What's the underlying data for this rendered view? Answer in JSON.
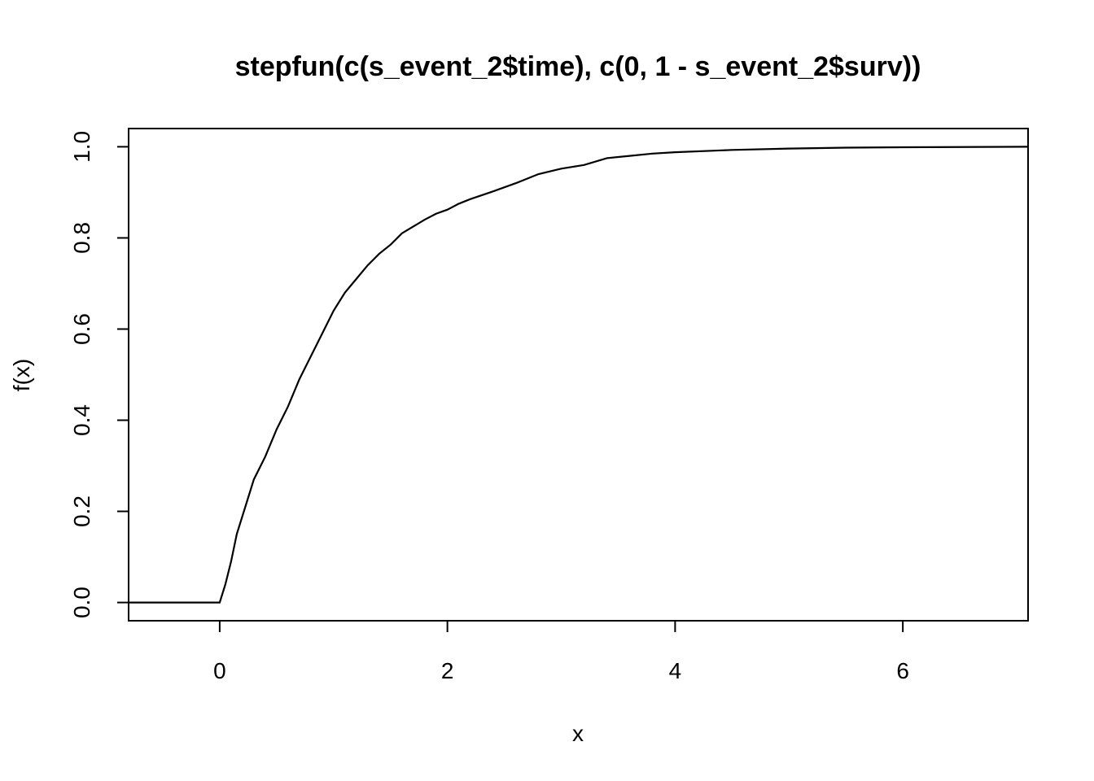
{
  "chart_data": {
    "type": "line",
    "title": "stepfun(c(s_event_2$time), c(0, 1 - s_event_2$surv))",
    "xlabel": "x",
    "ylabel": "f(x)",
    "xlim": [
      -0.8,
      7.1
    ],
    "ylim": [
      -0.04,
      1.04
    ],
    "x_ticks": [
      0,
      2,
      4,
      6
    ],
    "y_ticks": [
      0.0,
      0.2,
      0.4,
      0.6,
      0.8,
      1.0
    ],
    "x_tick_labels": [
      "0",
      "2",
      "4",
      "6"
    ],
    "y_tick_labels": [
      "0.0",
      "0.2",
      "0.4",
      "0.6",
      "0.8",
      "1.0"
    ],
    "grid": false,
    "legend": "none",
    "line_color": "#000000",
    "series": [
      {
        "values": [
          [
            -0.8,
            0.0
          ],
          [
            0.0,
            0.0
          ],
          [
            0.05,
            0.04
          ],
          [
            0.1,
            0.09
          ],
          [
            0.15,
            0.15
          ],
          [
            0.2,
            0.19
          ],
          [
            0.25,
            0.23
          ],
          [
            0.3,
            0.27
          ],
          [
            0.4,
            0.32
          ],
          [
            0.5,
            0.38
          ],
          [
            0.6,
            0.43
          ],
          [
            0.7,
            0.49
          ],
          [
            0.8,
            0.54
          ],
          [
            0.9,
            0.59
          ],
          [
            1.0,
            0.64
          ],
          [
            1.1,
            0.68
          ],
          [
            1.2,
            0.71
          ],
          [
            1.3,
            0.74
          ],
          [
            1.4,
            0.765
          ],
          [
            1.5,
            0.785
          ],
          [
            1.6,
            0.81
          ],
          [
            1.7,
            0.825
          ],
          [
            1.8,
            0.84
          ],
          [
            1.9,
            0.853
          ],
          [
            2.0,
            0.862
          ],
          [
            2.1,
            0.875
          ],
          [
            2.2,
            0.885
          ],
          [
            2.4,
            0.902
          ],
          [
            2.6,
            0.92
          ],
          [
            2.8,
            0.94
          ],
          [
            3.0,
            0.952
          ],
          [
            3.2,
            0.96
          ],
          [
            3.4,
            0.975
          ],
          [
            3.6,
            0.98
          ],
          [
            3.8,
            0.985
          ],
          [
            4.0,
            0.988
          ],
          [
            4.5,
            0.993
          ],
          [
            5.0,
            0.996
          ],
          [
            5.5,
            0.998
          ],
          [
            6.0,
            0.999
          ],
          [
            7.1,
            1.0
          ]
        ]
      }
    ]
  }
}
